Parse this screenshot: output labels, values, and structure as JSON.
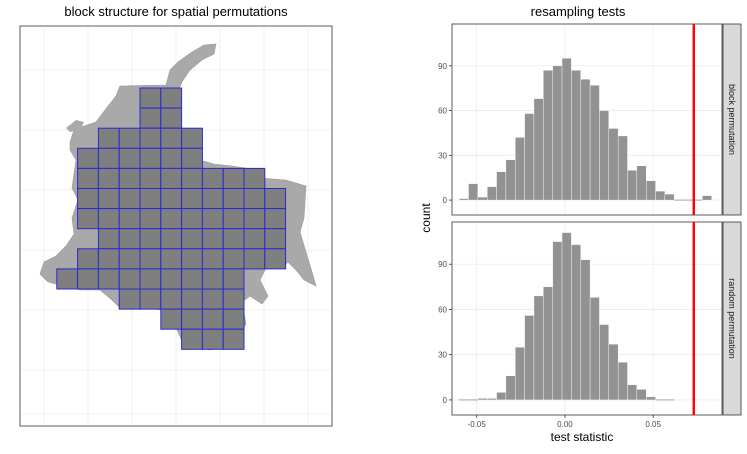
{
  "left_panel": {
    "title": "block structure for spatial permutations"
  },
  "right_panel": {
    "title": "resampling tests",
    "xlabel": "test statistic",
    "ylabel": "count"
  },
  "colors": {
    "map_fill": "#a9a9a9",
    "block_fill": "#7f7f7f",
    "block_stroke": "#2a2ad2",
    "bar_fill": "#8c8c8c",
    "threshold_line": "#ff0000",
    "strip_bg": "#d9d9d9"
  },
  "chart_data": [
    {
      "type": "map",
      "title": "block structure for spatial permutations",
      "block_grid_cells": [
        [
          5,
          0
        ],
        [
          6,
          0
        ],
        [
          5,
          1
        ],
        [
          6,
          1
        ],
        [
          3,
          2
        ],
        [
          4,
          2
        ],
        [
          5,
          2
        ],
        [
          6,
          2
        ],
        [
          7,
          2
        ],
        [
          2,
          3
        ],
        [
          3,
          3
        ],
        [
          4,
          3
        ],
        [
          5,
          3
        ],
        [
          6,
          3
        ],
        [
          7,
          3
        ],
        [
          2,
          4
        ],
        [
          3,
          4
        ],
        [
          4,
          4
        ],
        [
          5,
          4
        ],
        [
          6,
          4
        ],
        [
          7,
          4
        ],
        [
          8,
          4
        ],
        [
          9,
          4
        ],
        [
          10,
          4
        ],
        [
          2,
          5
        ],
        [
          3,
          5
        ],
        [
          4,
          5
        ],
        [
          5,
          5
        ],
        [
          6,
          5
        ],
        [
          7,
          5
        ],
        [
          8,
          5
        ],
        [
          9,
          5
        ],
        [
          10,
          5
        ],
        [
          11,
          5
        ],
        [
          2,
          6
        ],
        [
          3,
          6
        ],
        [
          4,
          6
        ],
        [
          5,
          6
        ],
        [
          6,
          6
        ],
        [
          7,
          6
        ],
        [
          8,
          6
        ],
        [
          9,
          6
        ],
        [
          10,
          6
        ],
        [
          11,
          6
        ],
        [
          3,
          7
        ],
        [
          4,
          7
        ],
        [
          5,
          7
        ],
        [
          6,
          7
        ],
        [
          7,
          7
        ],
        [
          8,
          7
        ],
        [
          9,
          7
        ],
        [
          10,
          7
        ],
        [
          11,
          7
        ],
        [
          2,
          8
        ],
        [
          3,
          8
        ],
        [
          4,
          8
        ],
        [
          5,
          8
        ],
        [
          6,
          8
        ],
        [
          7,
          8
        ],
        [
          8,
          8
        ],
        [
          9,
          8
        ],
        [
          10,
          8
        ],
        [
          11,
          8
        ],
        [
          1,
          9
        ],
        [
          2,
          9
        ],
        [
          3,
          9
        ],
        [
          4,
          9
        ],
        [
          5,
          9
        ],
        [
          6,
          9
        ],
        [
          7,
          9
        ],
        [
          8,
          9
        ],
        [
          9,
          9
        ],
        [
          4,
          10
        ],
        [
          5,
          10
        ],
        [
          6,
          10
        ],
        [
          7,
          10
        ],
        [
          8,
          10
        ],
        [
          9,
          10
        ],
        [
          6,
          11
        ],
        [
          7,
          11
        ],
        [
          8,
          11
        ],
        [
          9,
          11
        ],
        [
          7,
          12
        ],
        [
          8,
          12
        ],
        [
          9,
          12
        ]
      ]
    },
    {
      "type": "bar",
      "title": "resampling tests",
      "xlabel": "test statistic",
      "ylabel": "count",
      "xlim": [
        -0.064,
        0.089
      ],
      "xticks": [
        -0.05,
        0.0,
        0.05
      ],
      "xtick_labels": [
        "-0.05",
        "0.00",
        "0.05"
      ],
      "ylim": [
        -10,
        118
      ],
      "yticks": [
        0,
        30,
        60,
        90
      ],
      "ytick_labels": [
        "0",
        "30",
        "60",
        "90"
      ],
      "bin_width": 0.0053,
      "threshold": 0.073,
      "series": [
        {
          "name": "block permutation",
          "bins": [
            {
              "x": -0.0573,
              "count": 1
            },
            {
              "x": -0.052,
              "count": 11
            },
            {
              "x": -0.0467,
              "count": 2
            },
            {
              "x": -0.0414,
              "count": 9
            },
            {
              "x": -0.0361,
              "count": 19
            },
            {
              "x": -0.0308,
              "count": 27
            },
            {
              "x": -0.0255,
              "count": 42
            },
            {
              "x": -0.0202,
              "count": 58
            },
            {
              "x": -0.0149,
              "count": 68
            },
            {
              "x": -0.0096,
              "count": 87
            },
            {
              "x": -0.0043,
              "count": 90
            },
            {
              "x": 0.001,
              "count": 95
            },
            {
              "x": 0.0063,
              "count": 87
            },
            {
              "x": 0.0116,
              "count": 81
            },
            {
              "x": 0.0169,
              "count": 77
            },
            {
              "x": 0.0222,
              "count": 60
            },
            {
              "x": 0.0275,
              "count": 48
            },
            {
              "x": 0.0328,
              "count": 43
            },
            {
              "x": 0.0381,
              "count": 20
            },
            {
              "x": 0.0434,
              "count": 23
            },
            {
              "x": 0.0487,
              "count": 13
            },
            {
              "x": 0.054,
              "count": 6
            },
            {
              "x": 0.0593,
              "count": 4
            },
            {
              "x": 0.0646,
              "count": 0
            },
            {
              "x": 0.0699,
              "count": 0
            },
            {
              "x": 0.0752,
              "count": 0
            },
            {
              "x": 0.0805,
              "count": 3
            }
          ]
        },
        {
          "name": "random permutation",
          "bins": [
            {
              "x": -0.0573,
              "count": 0
            },
            {
              "x": -0.052,
              "count": 0
            },
            {
              "x": -0.0467,
              "count": 1
            },
            {
              "x": -0.0414,
              "count": 1
            },
            {
              "x": -0.0361,
              "count": 5
            },
            {
              "x": -0.0308,
              "count": 16
            },
            {
              "x": -0.0255,
              "count": 35
            },
            {
              "x": -0.0202,
              "count": 56
            },
            {
              "x": -0.0149,
              "count": 69
            },
            {
              "x": -0.0096,
              "count": 75
            },
            {
              "x": -0.0043,
              "count": 105
            },
            {
              "x": 0.001,
              "count": 111
            },
            {
              "x": 0.0063,
              "count": 103
            },
            {
              "x": 0.0116,
              "count": 93
            },
            {
              "x": 0.0169,
              "count": 68
            },
            {
              "x": 0.0222,
              "count": 50
            },
            {
              "x": 0.0275,
              "count": 37
            },
            {
              "x": 0.0328,
              "count": 25
            },
            {
              "x": 0.0381,
              "count": 10
            },
            {
              "x": 0.0434,
              "count": 7
            },
            {
              "x": 0.0487,
              "count": 2
            },
            {
              "x": 0.054,
              "count": 0
            },
            {
              "x": 0.0593,
              "count": 0
            }
          ]
        }
      ]
    }
  ]
}
